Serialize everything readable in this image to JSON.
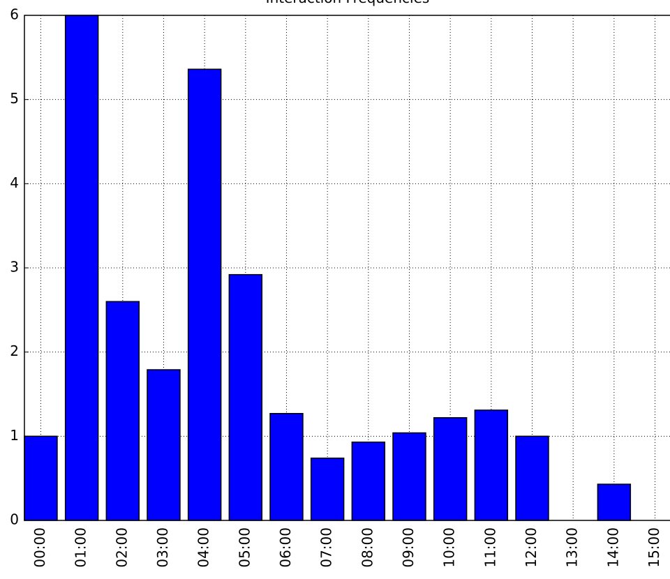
{
  "chart_data": {
    "type": "bar",
    "title": "Interaction Frequencies",
    "categories": [
      "00:00",
      "01:00",
      "02:00",
      "03:00",
      "04:00",
      "05:00",
      "06:00",
      "07:00",
      "08:00",
      "09:00",
      "10:00",
      "11:00",
      "12:00",
      "13:00",
      "14:00",
      "15:00"
    ],
    "values": [
      1.0,
      6.0,
      2.6,
      1.79,
      5.36,
      2.92,
      1.27,
      0.74,
      0.93,
      1.04,
      1.22,
      1.31,
      1.0,
      0,
      0.43,
      0
    ],
    "color": "#0000ff",
    "ylim": [
      0,
      6
    ],
    "yticks": [
      0,
      1,
      2,
      3,
      4,
      5,
      6
    ],
    "grid": true
  }
}
